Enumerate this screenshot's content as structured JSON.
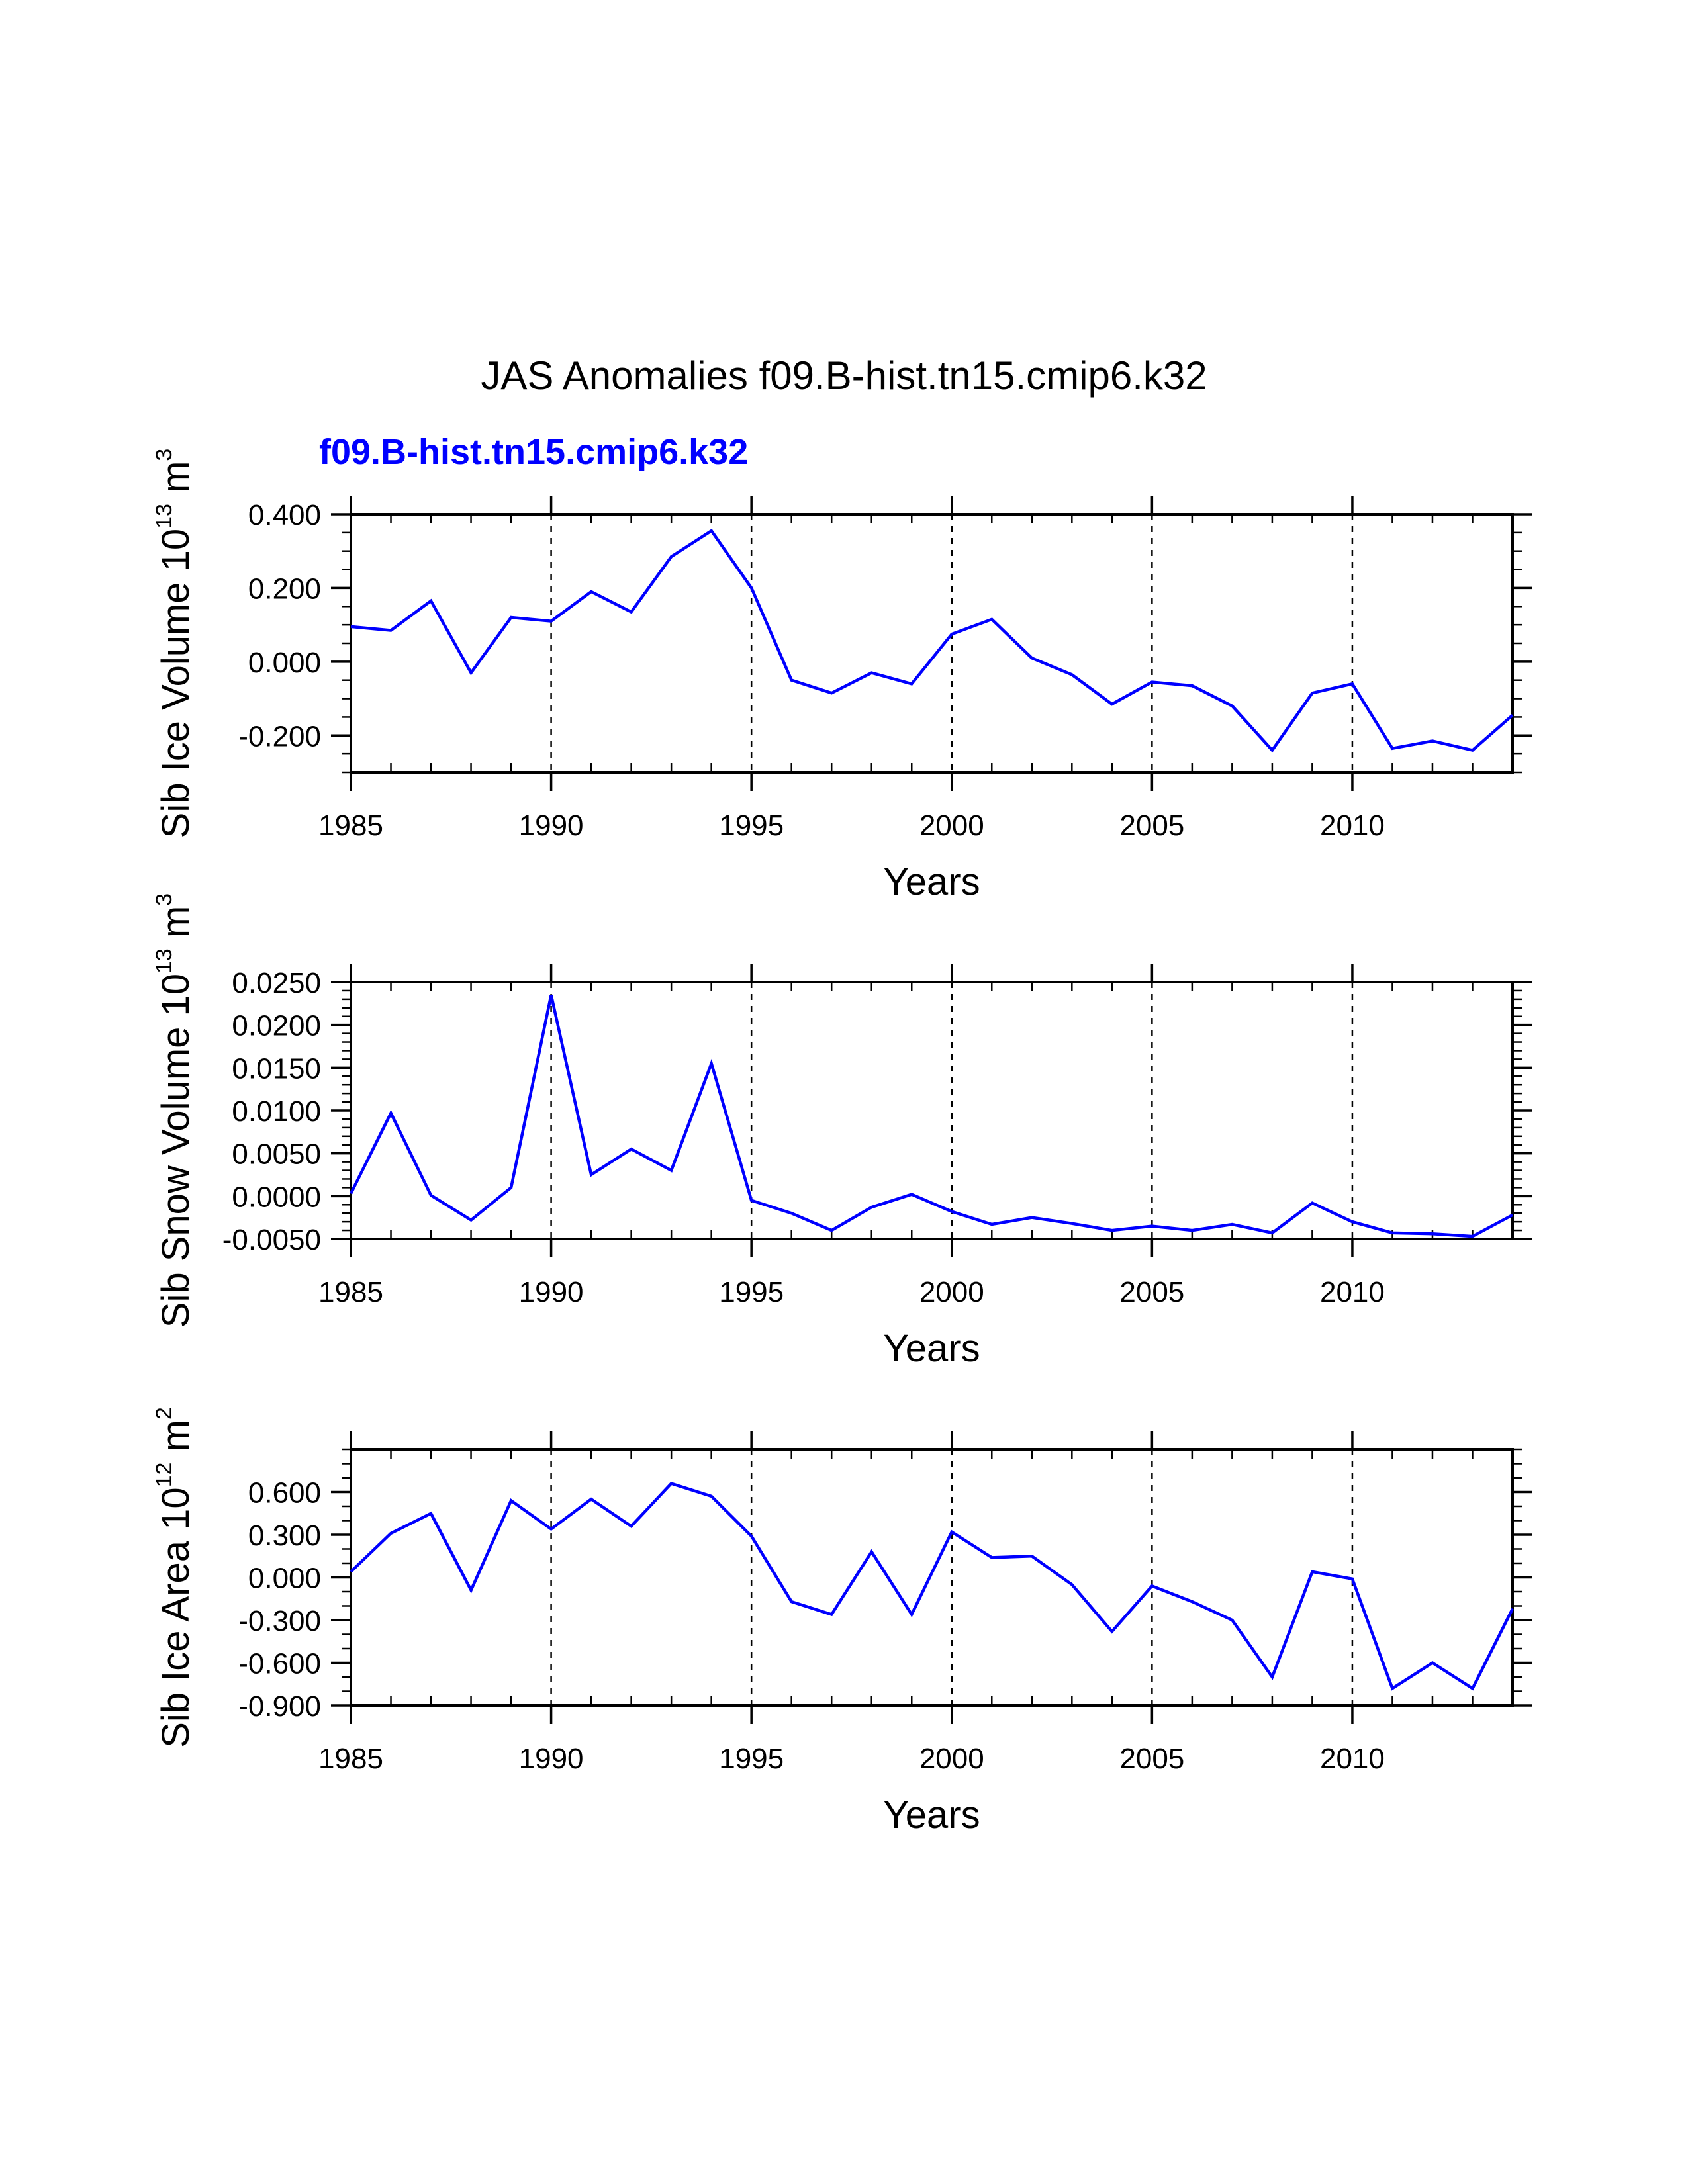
{
  "colors": {
    "series": "#0000ff",
    "axes": "#000000",
    "grid": "#000000"
  },
  "figure": {
    "title": "JAS Anomalies f09.B-hist.tn15.cmip6.k32",
    "subtitle": "f09.B-hist.tn15.cmip6.k32"
  },
  "chart_data": [
    {
      "type": "line",
      "ylabel_main": "Sib Ice Volume 10",
      "ylabel_exp": "13",
      "ylabel_unit": " m",
      "ylabel_unit_exp": "3",
      "xlabel": "Years",
      "xlim": [
        1985,
        2014
      ],
      "ylim": [
        -0.3,
        0.4
      ],
      "yticks": [
        -0.2,
        0.0,
        0.2,
        0.4
      ],
      "ytick_labels": [
        "-0.200",
        "0.000",
        "0.200",
        "0.400"
      ],
      "yminor": 0.05,
      "xticks": [
        1985,
        1990,
        1995,
        2000,
        2005,
        2010
      ],
      "xtick_labels": [
        "1985",
        "1990",
        "1995",
        "2000",
        "2005",
        "2010"
      ],
      "grid_x": [
        1990,
        1995,
        2000,
        2005,
        2010
      ],
      "x": [
        1985,
        1986,
        1987,
        1988,
        1989,
        1990,
        1991,
        1992,
        1993,
        1994,
        1995,
        1996,
        1997,
        1998,
        1999,
        2000,
        2001,
        2002,
        2003,
        2004,
        2005,
        2006,
        2007,
        2008,
        2009,
        2010,
        2011,
        2012,
        2013,
        2014
      ],
      "series": [
        {
          "name": "f09.B-hist.tn15.cmip6.k32",
          "values": [
            0.095,
            0.085,
            0.165,
            -0.03,
            0.12,
            0.11,
            0.19,
            0.135,
            0.285,
            0.355,
            0.2,
            -0.05,
            -0.085,
            -0.03,
            -0.06,
            0.075,
            0.115,
            0.01,
            -0.035,
            -0.115,
            -0.055,
            -0.065,
            -0.12,
            -0.24,
            -0.085,
            -0.06,
            -0.235,
            -0.215,
            -0.24,
            -0.145
          ]
        }
      ]
    },
    {
      "type": "line",
      "ylabel_main": "Sib Snow Volume 10",
      "ylabel_exp": "13",
      "ylabel_unit": " m",
      "ylabel_unit_exp": "3",
      "xlabel": "Years",
      "xlim": [
        1985,
        2014
      ],
      "ylim": [
        -0.005,
        0.025
      ],
      "yticks": [
        -0.005,
        0.0,
        0.005,
        0.01,
        0.015,
        0.02,
        0.025
      ],
      "ytick_labels": [
        "-0.0050",
        "0.0000",
        "0.0050",
        "0.0100",
        "0.0150",
        "0.0200",
        "0.0250"
      ],
      "yminor": 0.001,
      "xticks": [
        1985,
        1990,
        1995,
        2000,
        2005,
        2010
      ],
      "xtick_labels": [
        "1985",
        "1990",
        "1995",
        "2000",
        "2005",
        "2010"
      ],
      "grid_x": [
        1990,
        1995,
        2000,
        2005,
        2010
      ],
      "x": [
        1985,
        1986,
        1987,
        1988,
        1989,
        1990,
        1991,
        1992,
        1993,
        1994,
        1995,
        1996,
        1997,
        1998,
        1999,
        2000,
        2001,
        2002,
        2003,
        2004,
        2005,
        2006,
        2007,
        2008,
        2009,
        2010,
        2011,
        2012,
        2013,
        2014
      ],
      "series": [
        {
          "name": "f09.B-hist.tn15.cmip6.k32",
          "values": [
            0.0003,
            0.0097,
            0.0001,
            -0.0028,
            0.001,
            0.0235,
            0.0025,
            0.0055,
            0.003,
            0.0155,
            -0.0005,
            -0.002,
            -0.004,
            -0.0013,
            0.0002,
            -0.0018,
            -0.0033,
            -0.0025,
            -0.0032,
            -0.004,
            -0.0035,
            -0.004,
            -0.0033,
            -0.0043,
            -0.0008,
            -0.003,
            -0.0043,
            -0.0044,
            -0.0047,
            -0.0022
          ]
        }
      ]
    },
    {
      "type": "line",
      "ylabel_main": "Sib Ice Area 10",
      "ylabel_exp": "12",
      "ylabel_unit": " m",
      "ylabel_unit_exp": "2",
      "xlabel": "Years",
      "xlim": [
        1985,
        2014
      ],
      "ylim": [
        -0.9,
        0.9
      ],
      "yticks": [
        -0.9,
        -0.6,
        -0.3,
        0.0,
        0.3,
        0.6
      ],
      "ytick_labels": [
        "-0.900",
        "-0.600",
        "-0.300",
        "0.000",
        "0.300",
        "0.600"
      ],
      "yminor": 0.1,
      "xticks": [
        1985,
        1990,
        1995,
        2000,
        2005,
        2010
      ],
      "xtick_labels": [
        "1985",
        "1990",
        "1995",
        "2000",
        "2005",
        "2010"
      ],
      "grid_x": [
        1990,
        1995,
        2000,
        2005,
        2010
      ],
      "x": [
        1985,
        1986,
        1987,
        1988,
        1989,
        1990,
        1991,
        1992,
        1993,
        1994,
        1995,
        1996,
        1997,
        1998,
        1999,
        2000,
        2001,
        2002,
        2003,
        2004,
        2005,
        2006,
        2007,
        2008,
        2009,
        2010,
        2011,
        2012,
        2013,
        2014
      ],
      "series": [
        {
          "name": "f09.B-hist.tn15.cmip6.k32",
          "values": [
            0.04,
            0.31,
            0.45,
            -0.09,
            0.54,
            0.34,
            0.55,
            0.36,
            0.66,
            0.57,
            0.29,
            -0.17,
            -0.26,
            0.18,
            -0.26,
            0.32,
            0.14,
            0.15,
            -0.05,
            -0.38,
            -0.06,
            -0.17,
            -0.3,
            -0.7,
            0.04,
            -0.01,
            -0.78,
            -0.6,
            -0.78,
            -0.22
          ]
        }
      ]
    }
  ]
}
